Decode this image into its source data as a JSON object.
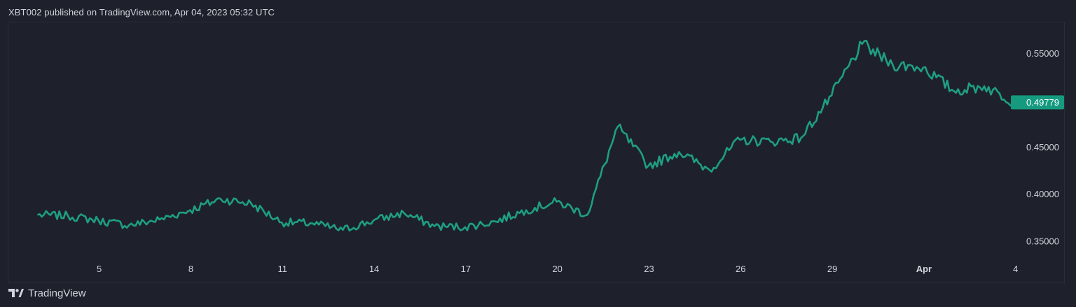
{
  "header": {
    "published_text": "XBT002 published on TradingView.com, Apr 04, 2023 05:32 UTC"
  },
  "footer": {
    "brand": "TradingView"
  },
  "colors": {
    "background": "#1e212b",
    "line": "#1f9e83",
    "text": "#d1d4dc",
    "price_tag_bg": "#159a80",
    "price_tag_text": "#ffffff"
  },
  "chart_data": {
    "type": "line",
    "series": [
      {
        "x": [
          "Mar 3",
          "Mar 4",
          "Mar 5",
          "Mar 6",
          "Mar 7",
          "Mar 8",
          "Mar 9",
          "Mar 10",
          "Mar 11",
          "Mar 12",
          "Mar 13",
          "Mar 14",
          "Mar 15",
          "Mar 16",
          "Mar 17",
          "Mar 18",
          "Mar 19",
          "Mar 20",
          "Mar 21",
          "Mar 22",
          "Mar 23",
          "Mar 24",
          "Mar 25",
          "Mar 26",
          "Mar 27",
          "Mar 28",
          "Mar 29",
          "Mar 30",
          "Mar 31",
          "Apr 1",
          "Apr 2",
          "Apr 3",
          "Apr 4"
        ],
        "values": [
          0.378,
          0.377,
          0.372,
          0.367,
          0.373,
          0.383,
          0.395,
          0.39,
          0.37,
          0.369,
          0.362,
          0.372,
          0.38,
          0.366,
          0.365,
          0.371,
          0.383,
          0.392,
          0.378,
          0.472,
          0.43,
          0.445,
          0.426,
          0.458,
          0.456,
          0.46,
          0.505,
          0.56,
          0.538,
          0.535,
          0.51,
          0.515,
          0.498
        ]
      }
    ],
    "y_ticks": [
      "0.55000",
      "0.45000",
      "0.40000",
      "0.35000"
    ],
    "x_ticks": [
      "5",
      "8",
      "11",
      "14",
      "17",
      "20",
      "23",
      "26",
      "29",
      "Apr",
      "4"
    ],
    "last_price": "0.49779",
    "ylim": [
      0.335,
      0.583
    ],
    "xlim_days_from_mar3": [
      -0.95,
      31.8
    ],
    "grid": false
  }
}
